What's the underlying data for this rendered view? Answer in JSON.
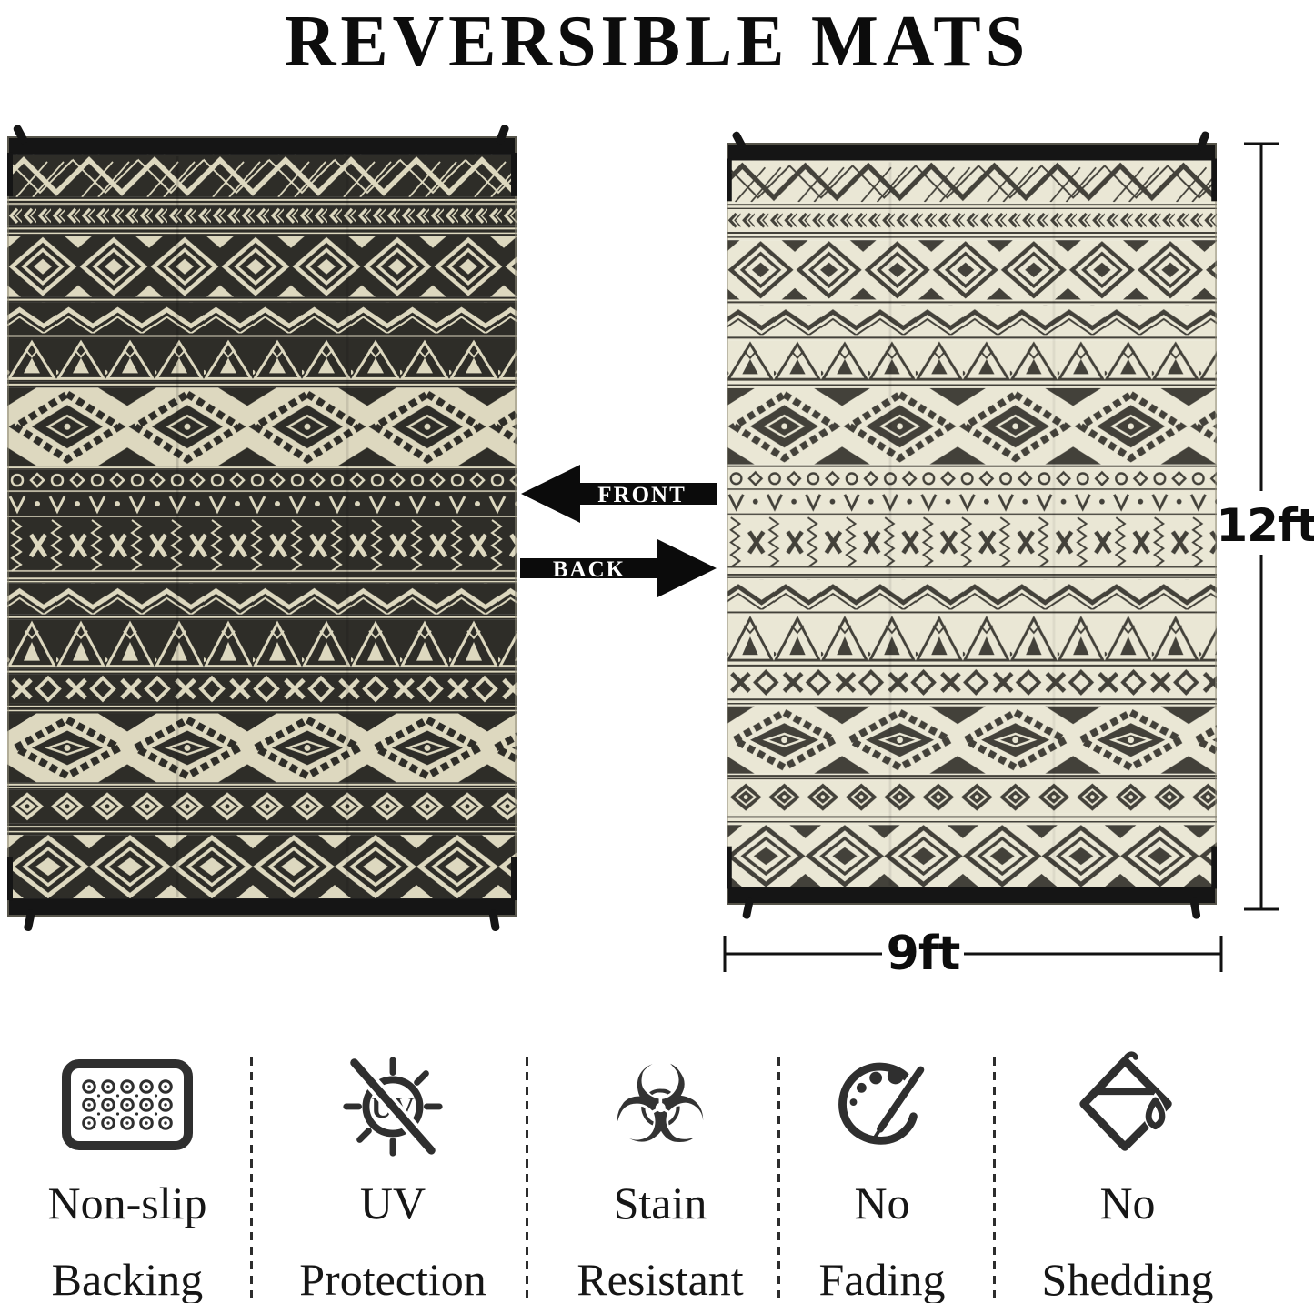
{
  "title": "REVERSIBLE MATS",
  "arrows": {
    "front": "FRONT",
    "back": "BACK"
  },
  "dimensions": {
    "height": "12ft",
    "width": "9ft"
  },
  "rugs": {
    "front": {
      "side": "front",
      "bg": "#2e2d28",
      "pattern": "#ddd8bf"
    },
    "back": {
      "side": "back",
      "bg": "#eae7d5",
      "pattern": "#43413a"
    }
  },
  "colors": {
    "binding": "#151515",
    "icon": "#2f2f2f",
    "text": "#111111",
    "arrow": "#0b0b0b",
    "dimension_line": "#111111"
  },
  "features": [
    {
      "icon": "non-slip-backing-icon",
      "lines": [
        "Non-slip",
        "Backing"
      ]
    },
    {
      "icon": "uv-protection-icon",
      "icon_text": "UV",
      "lines": [
        "UV",
        "Protection"
      ]
    },
    {
      "icon": "stain-resistant-icon",
      "glyph": "☣",
      "lines": [
        "Stain",
        "Resistant"
      ]
    },
    {
      "icon": "no-fading-icon",
      "lines": [
        "No",
        "Fading"
      ]
    },
    {
      "icon": "no-shedding-icon",
      "lines": [
        "No",
        "Shedding"
      ]
    }
  ]
}
